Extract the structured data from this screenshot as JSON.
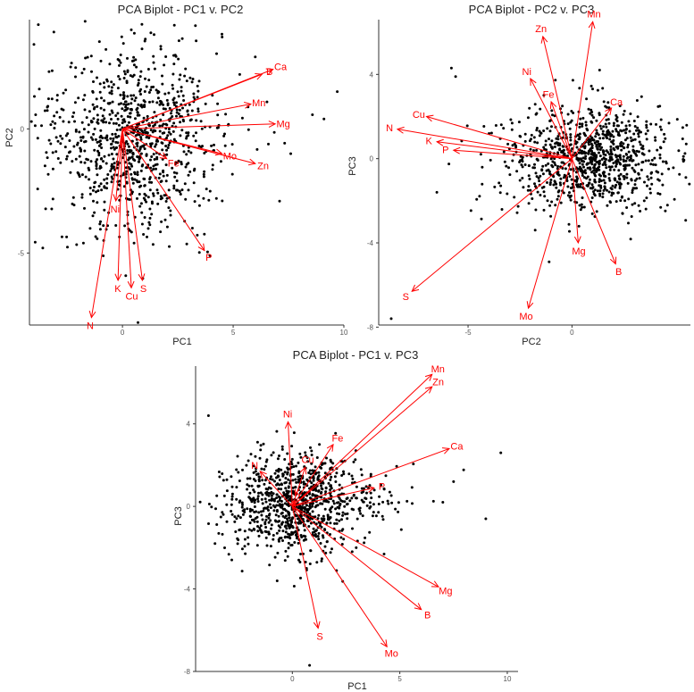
{
  "colors": {
    "points": "#000000",
    "vectors": "#ff0000",
    "axis": "#333333"
  },
  "chart_data": [
    {
      "type": "scatter",
      "title": "PCA Biplot - PC1 v. PC2",
      "xlabel": "PC1",
      "ylabel": "PC2",
      "xlim": [
        -4.2,
        10.0
      ],
      "ylim": [
        -7.9,
        4.4
      ],
      "xticks": [
        0,
        5,
        10
      ],
      "yticks": [
        -5,
        0
      ],
      "origin": [
        0,
        0
      ],
      "scores": {
        "center": [
          0.0,
          -0.4
        ],
        "spread": [
          1.7,
          1.8
        ],
        "n": 950,
        "seed": 11,
        "outliers": [
          [
            -3.8,
            4.2
          ],
          [
            -3.1,
            3.9
          ],
          [
            -4.0,
            3.4
          ],
          [
            -3.6,
            -4.8
          ],
          [
            9.7,
            1.5
          ],
          [
            9.1,
            0.4
          ],
          [
            7.6,
            -1.0
          ],
          [
            0.7,
            -7.8
          ],
          [
            6.0,
            2.9
          ],
          [
            4.5,
            3.7
          ]
        ]
      },
      "vectors": [
        {
          "label": "B",
          "end": [
            6.3,
            2.2
          ]
        },
        {
          "label": "Ca",
          "end": [
            6.8,
            2.4
          ]
        },
        {
          "label": "Mn",
          "end": [
            5.8,
            1.0
          ]
        },
        {
          "label": "Mg",
          "end": [
            6.9,
            0.2
          ]
        },
        {
          "label": "Zn",
          "end": [
            6.0,
            -1.4
          ]
        },
        {
          "label": "Mo",
          "end": [
            4.5,
            -1.0
          ]
        },
        {
          "label": "Fe",
          "end": [
            2.0,
            -1.2
          ]
        },
        {
          "label": "P",
          "end": [
            3.7,
            -4.9
          ]
        },
        {
          "label": "S",
          "end": [
            0.9,
            -6.1
          ]
        },
        {
          "label": "Cu",
          "end": [
            0.4,
            -6.4
          ]
        },
        {
          "label": "K",
          "end": [
            -0.2,
            -6.1
          ]
        },
        {
          "label": "N",
          "end": [
            -1.4,
            -7.6
          ]
        },
        {
          "label": "Ni",
          "end": [
            -0.3,
            -2.9
          ]
        }
      ]
    },
    {
      "type": "scatter",
      "title": "PCA Biplot - PC2 v. PC3",
      "xlabel": "PC2",
      "ylabel": "PC3",
      "xlim": [
        -9.3,
        5.7
      ],
      "ylim": [
        -7.9,
        6.6
      ],
      "xticks": [
        -5,
        0
      ],
      "yticks": [
        -8,
        -4,
        0,
        4
      ],
      "origin": [
        0,
        0
      ],
      "scores": {
        "center": [
          0.3,
          0.0
        ],
        "spread": [
          1.8,
          1.2
        ],
        "n": 950,
        "seed": 22,
        "outliers": [
          [
            -5.8,
            4.3
          ],
          [
            -5.6,
            3.9
          ],
          [
            -8.7,
            -7.6
          ],
          [
            -1.1,
            -4.9
          ],
          [
            5.5,
            0.7
          ],
          [
            -6.5,
            -1.6
          ]
        ]
      },
      "vectors": [
        {
          "label": "Zn",
          "end": [
            -1.4,
            5.8
          ]
        },
        {
          "label": "Mn",
          "end": [
            1.0,
            6.5
          ]
        },
        {
          "label": "Ni",
          "end": [
            -2.0,
            3.8
          ]
        },
        {
          "label": "Fe",
          "end": [
            -1.0,
            2.7
          ]
        },
        {
          "label": "Ca",
          "end": [
            1.9,
            2.4
          ]
        },
        {
          "label": "Cu",
          "end": [
            -7.0,
            2.0
          ]
        },
        {
          "label": "N",
          "end": [
            -8.4,
            1.4
          ]
        },
        {
          "label": "K",
          "end": [
            -6.5,
            0.8
          ]
        },
        {
          "label": "P",
          "end": [
            -5.7,
            0.4
          ]
        },
        {
          "label": "Mg",
          "end": [
            0.3,
            -4.0
          ]
        },
        {
          "label": "B",
          "end": [
            2.1,
            -5.0
          ]
        },
        {
          "label": "Mo",
          "end": [
            -2.1,
            -7.1
          ]
        },
        {
          "label": "S",
          "end": [
            -7.7,
            -6.3
          ]
        }
      ]
    },
    {
      "type": "scatter",
      "title": "PCA Biplot - PC1 v. PC3",
      "xlabel": "PC1",
      "ylabel": "PC3",
      "xlim": [
        -4.5,
        10.5
      ],
      "ylim": [
        -8.0,
        6.8
      ],
      "xticks": [
        0,
        5,
        10
      ],
      "yticks": [
        -8,
        -4,
        0,
        4
      ],
      "origin": [
        0,
        0
      ],
      "scores": {
        "center": [
          -0.2,
          0.2
        ],
        "spread": [
          1.5,
          1.2
        ],
        "n": 950,
        "seed": 33,
        "outliers": [
          [
            -3.9,
            4.4
          ],
          [
            9.7,
            2.6
          ],
          [
            9.0,
            -0.6
          ],
          [
            0.8,
            -7.7
          ],
          [
            7.0,
            0.2
          ],
          [
            7.5,
            1.2
          ],
          [
            -3.6,
            -1.8
          ]
        ]
      },
      "vectors": [
        {
          "label": "Mn",
          "end": [
            6.5,
            6.4
          ]
        },
        {
          "label": "Zn",
          "end": [
            6.5,
            5.8
          ]
        },
        {
          "label": "Ni",
          "end": [
            -0.2,
            4.1
          ]
        },
        {
          "label": "Fe",
          "end": [
            1.9,
            3.0
          ]
        },
        {
          "label": "Ca",
          "end": [
            7.3,
            2.8
          ]
        },
        {
          "label": "P",
          "end": [
            3.8,
            0.9
          ]
        },
        {
          "label": "N",
          "end": [
            -1.5,
            1.7
          ]
        },
        {
          "label": "Cu",
          "end": [
            0.6,
            1.9
          ]
        },
        {
          "label": "Mg",
          "end": [
            6.8,
            -3.9
          ]
        },
        {
          "label": "B",
          "end": [
            6.0,
            -5.0
          ]
        },
        {
          "label": "Mo",
          "end": [
            4.4,
            -6.8
          ]
        },
        {
          "label": "S",
          "end": [
            1.2,
            -5.9
          ]
        },
        {
          "label": "K",
          "end": [
            0.1,
            0.3
          ]
        }
      ]
    }
  ]
}
